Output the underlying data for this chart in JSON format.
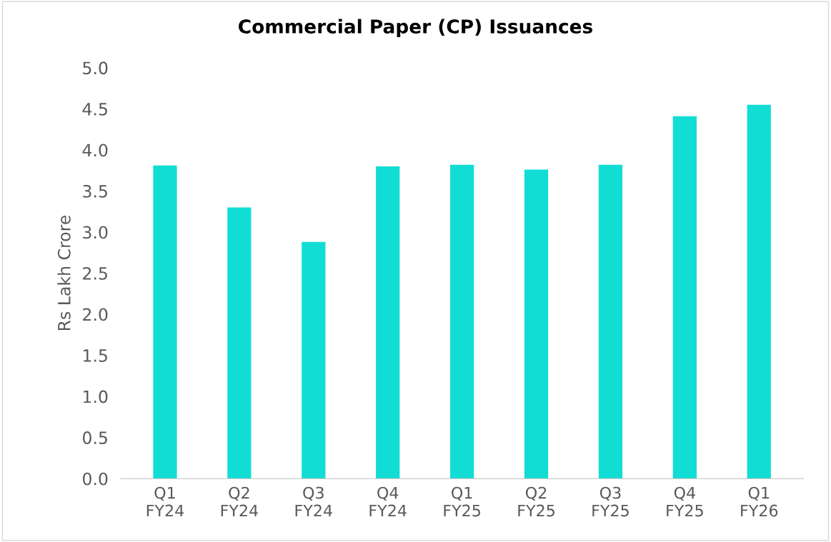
{
  "chart_data": {
    "type": "bar",
    "title": "Commercial Paper (CP) Issuances",
    "ylabel": "Rs Lakh Crore",
    "categories": [
      "Q1\nFY24",
      "Q2\nFY24",
      "Q3\nFY24",
      "Q4\nFY24",
      "Q1\nFY25",
      "Q2\nFY25",
      "Q3\nFY25",
      "Q4\nFY25",
      "Q1\nFY26"
    ],
    "values": [
      3.81,
      3.3,
      2.88,
      3.8,
      3.82,
      3.76,
      3.82,
      4.41,
      4.55
    ],
    "color": "#12ddd4",
    "ylim": [
      0,
      5
    ],
    "yticks": [
      {
        "value": 0,
        "label": "0.0"
      },
      {
        "value": 0.5,
        "label": "0.5"
      },
      {
        "value": 1,
        "label": "1.0"
      },
      {
        "value": 1.5,
        "label": "1.5"
      },
      {
        "value": 2,
        "label": "2.0"
      },
      {
        "value": 2.5,
        "label": "2.5"
      },
      {
        "value": 3,
        "label": "3.0"
      },
      {
        "value": 3.5,
        "label": "3.5"
      },
      {
        "value": 4,
        "label": "4.0"
      },
      {
        "value": 4.5,
        "label": "4.5"
      },
      {
        "value": 5,
        "label": "5.0"
      }
    ],
    "grid": false,
    "legend": false
  }
}
